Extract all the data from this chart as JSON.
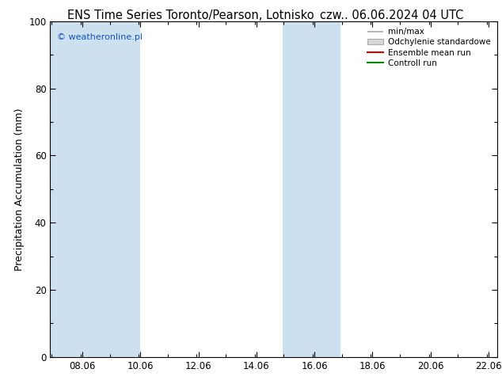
{
  "title_left": "ENS Time Series Toronto/Pearson, Lotnisko",
  "title_right": "czw.. 06.06.2024 04 UTC",
  "ylabel": "Precipitation Accumulation (mm)",
  "ylim": [
    0,
    100
  ],
  "yticks": [
    0,
    20,
    40,
    60,
    80,
    100
  ],
  "xlim": [
    6.95,
    22.35
  ],
  "xticks": [
    8.06,
    10.06,
    12.06,
    14.06,
    16.06,
    18.06,
    20.06,
    22.06
  ],
  "xticklabels": [
    "08.06",
    "10.06",
    "12.06",
    "14.06",
    "16.06",
    "18.06",
    "20.06",
    "22.06"
  ],
  "shaded_bands": [
    {
      "xmin": 6.95,
      "xmax": 10.06,
      "color": "#cce0f0"
    },
    {
      "xmin": 14.95,
      "xmax": 16.95,
      "color": "#cce0f0"
    }
  ],
  "watermark": "© weatheronline.pl",
  "watermark_color": "#1155cc",
  "legend_labels": [
    "min/max",
    "Odchylenie standardowe",
    "Ensemble mean run",
    "Controll run"
  ],
  "legend_line_colors": [
    "#aaaaaa",
    "#cccccc",
    "#dd0000",
    "#008800"
  ],
  "background_color": "#ffffff",
  "plot_bg_color": "#ffffff",
  "title_fontsize": 10.5,
  "tick_fontsize": 8.5,
  "ylabel_fontsize": 9,
  "legend_fontsize": 7.5
}
